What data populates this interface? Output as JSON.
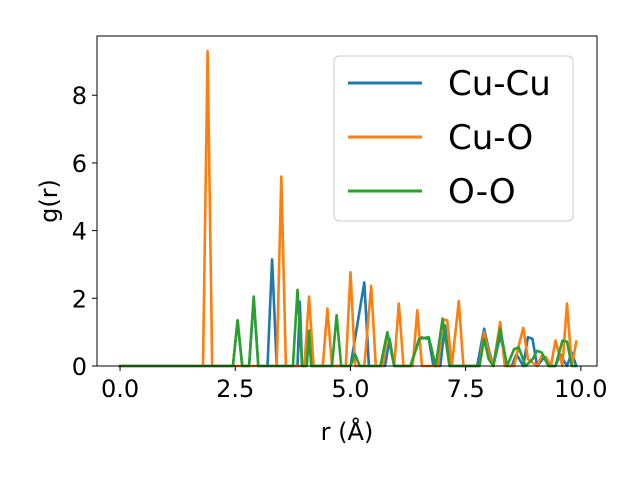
{
  "chart_data": {
    "type": "line",
    "xlabel": "r (Å)",
    "ylabel": "g(r)",
    "xlim": [
      -0.5,
      10.35
    ],
    "ylim": [
      0,
      9.75
    ],
    "xticks": [
      0.0,
      2.5,
      5.0,
      7.5,
      10.0
    ],
    "xtick_labels": [
      "0.0",
      "2.5",
      "5.0",
      "7.5",
      "10.0"
    ],
    "yticks": [
      0,
      2,
      4,
      6,
      8
    ],
    "ytick_labels": [
      "0",
      "2",
      "4",
      "6",
      "8"
    ],
    "grid": false,
    "legend_position": "top-right",
    "series": [
      {
        "name": "Cu-Cu",
        "color": "#1f77b4",
        "x": [
          0.0,
          2.45,
          2.55,
          2.65,
          2.8,
          2.9,
          3.0,
          3.2,
          3.3,
          3.4,
          3.85,
          3.9,
          3.95,
          4.05,
          4.1,
          4.15,
          4.3,
          5.0,
          5.3,
          5.4,
          5.5,
          5.75,
          5.85,
          5.95,
          6.3,
          6.5,
          6.7,
          6.8,
          6.95,
          7.05,
          7.15,
          7.25,
          7.75,
          7.9,
          8.0,
          8.1,
          8.25,
          8.4,
          8.5,
          8.6,
          8.75,
          8.85,
          8.95,
          9.05,
          9.2,
          9.3,
          9.45,
          9.55,
          9.7,
          9.8,
          9.9
        ],
        "values": [
          0,
          0,
          1.35,
          0,
          0,
          2.0,
          0,
          0,
          3.15,
          0,
          0,
          1.9,
          0,
          0,
          0.95,
          0,
          0,
          0,
          2.47,
          0,
          0,
          0,
          0.8,
          0,
          0,
          0.85,
          0.8,
          0,
          0,
          1.2,
          0,
          0,
          0,
          1.1,
          0.5,
          0,
          0.9,
          0,
          0,
          0.35,
          0,
          0.85,
          0.8,
          0,
          0.25,
          0,
          0,
          0.35,
          0,
          0.4,
          0
        ]
      },
      {
        "name": "Cu-O",
        "color": "#ff7f0e",
        "x": [
          0.0,
          1.8,
          1.9,
          2.0,
          3.4,
          3.5,
          3.6,
          4.0,
          4.1,
          4.2,
          4.4,
          4.5,
          4.6,
          4.9,
          5.0,
          5.1,
          5.3,
          5.45,
          5.55,
          5.7,
          5.8,
          5.95,
          6.05,
          6.15,
          6.35,
          6.45,
          6.55,
          6.9,
          7.0,
          7.1,
          7.2,
          7.35,
          7.45,
          7.55,
          7.8,
          7.9,
          8.0,
          8.1,
          8.25,
          8.35,
          8.55,
          8.65,
          8.75,
          8.85,
          9.05,
          9.15,
          9.25,
          9.35,
          9.45,
          9.6,
          9.7,
          9.8,
          9.9
        ],
        "values": [
          0,
          0,
          9.3,
          0,
          0,
          5.6,
          0,
          0,
          2.05,
          0,
          0,
          1.7,
          0,
          0,
          2.77,
          0,
          0,
          2.37,
          0,
          0,
          1.0,
          0,
          1.85,
          0,
          0,
          1.65,
          0,
          0,
          1.38,
          1.35,
          0,
          1.92,
          0,
          0,
          0,
          1.0,
          0.4,
          0,
          1.3,
          0,
          0,
          0.6,
          1.13,
          0.2,
          0,
          0.3,
          0.25,
          0,
          0.75,
          0,
          1.85,
          0,
          0.72
        ]
      },
      {
        "name": "O-O",
        "color": "#2ca02c",
        "x": [
          0.0,
          2.45,
          2.55,
          2.65,
          2.8,
          2.9,
          3.0,
          3.75,
          3.85,
          3.95,
          4.05,
          4.1,
          4.15,
          4.6,
          4.7,
          4.8,
          5.0,
          5.1,
          5.2,
          5.65,
          5.8,
          5.95,
          6.3,
          6.5,
          6.7,
          6.85,
          7.0,
          7.15,
          7.3,
          7.8,
          7.9,
          8.0,
          8.1,
          8.25,
          8.4,
          8.55,
          8.65,
          8.8,
          8.95,
          9.05,
          9.15,
          9.3,
          9.45,
          9.6,
          9.7,
          9.8,
          9.9
        ],
        "values": [
          0,
          0,
          1.35,
          0,
          0,
          2.05,
          0,
          0,
          2.25,
          0,
          0,
          1.05,
          0,
          0,
          1.5,
          0,
          0,
          0.35,
          0,
          0,
          1.0,
          0,
          0,
          0.8,
          0.85,
          0,
          1.4,
          0,
          0,
          0,
          0.8,
          0.2,
          0,
          1.1,
          0,
          0.5,
          0.55,
          0,
          0.2,
          0.45,
          0.4,
          0,
          0,
          0.75,
          0.72,
          0,
          0
        ]
      }
    ]
  }
}
